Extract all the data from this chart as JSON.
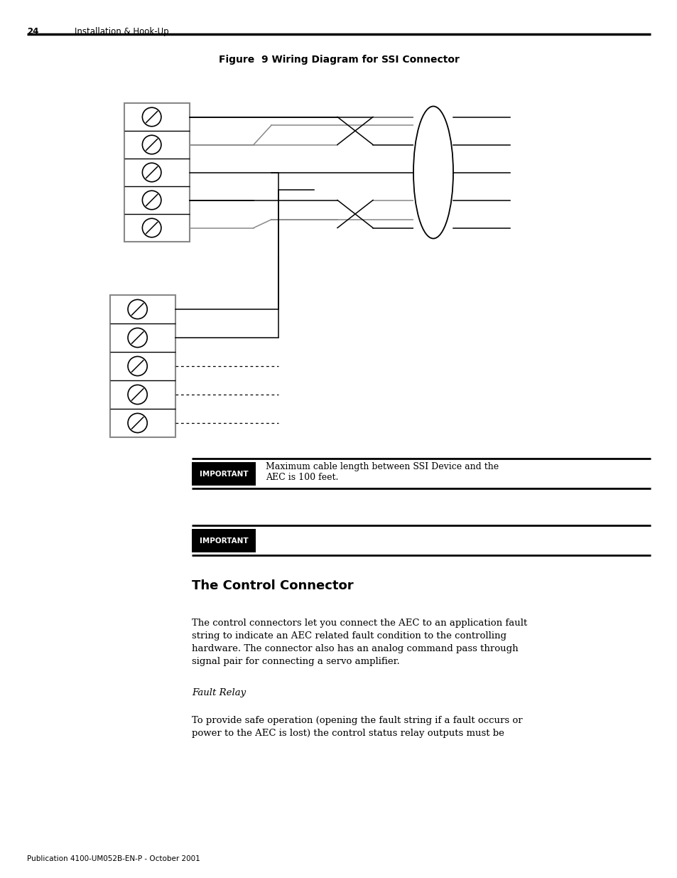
{
  "page_number": "24",
  "page_header": "Installation & Hook-Up",
  "figure_title": "Figure  9 Wiring Diagram for SSI Connector",
  "important_text_1": "Maximum cable length between SSI Device and the\nAEC is 100 feet.",
  "important_label": "IMPORTANT",
  "section_title": "The Control Connector",
  "body_text": "The control connectors let you connect the AEC to an application fault\nstring to indicate an AEC related fault condition to the controlling\nhardware. The connector also has an analog command pass through\nsignal pair for connecting a servo amplifier.",
  "subtitle_italic": "Fault Relay",
  "fault_text": "To provide safe operation (opening the fault string if a fault occurs or\npower to the AEC is lost) the control status relay outputs must be",
  "footer_text": "Publication 4100-UM052B-EN-P - October 2001",
  "bg_color": "#ffffff",
  "text_color": "#000000"
}
